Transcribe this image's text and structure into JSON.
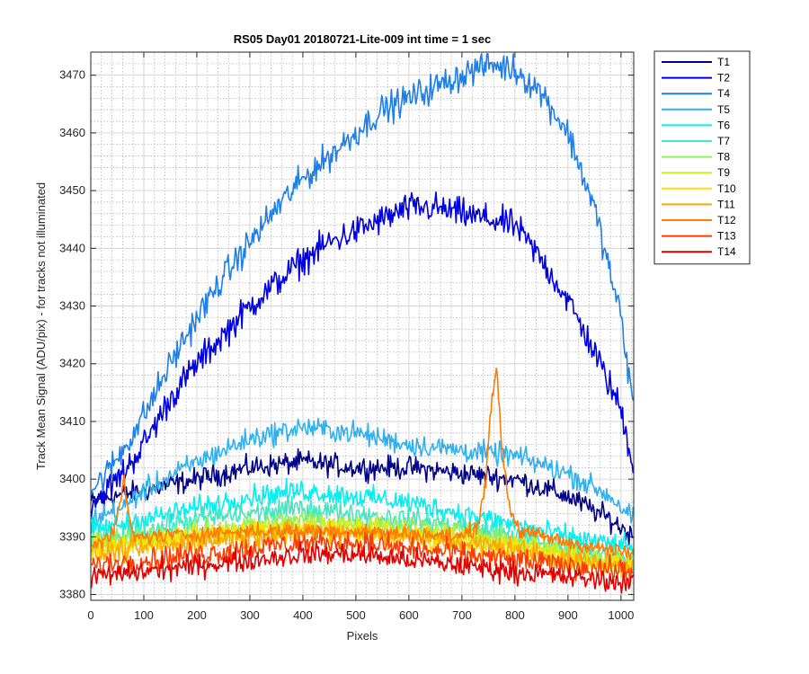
{
  "chart_data": {
    "type": "line",
    "title": "RS05 Day01 20180721-Lite-009 int time = 1 sec",
    "xlabel": "Pixels",
    "ylabel": "Track Mean Signal (ADU/pix) - for tracks not illuminated",
    "xlim": [
      0,
      1024
    ],
    "ylim": [
      3379,
      3474
    ],
    "xticks": [
      0,
      100,
      200,
      300,
      400,
      500,
      600,
      700,
      800,
      900,
      1000
    ],
    "yticks": [
      3380,
      3390,
      3400,
      3410,
      3420,
      3430,
      3440,
      3450,
      3460,
      3470
    ],
    "grid": true,
    "minor_grid": true,
    "legend_position": "outside-top-right",
    "series": [
      {
        "name": "T1",
        "color": "#00008B",
        "x": [
          0,
          40,
          100,
          200,
          300,
          400,
          500,
          600,
          700,
          800,
          900,
          980,
          1024
        ],
        "y": [
          3396,
          3397,
          3398,
          3400,
          3402,
          3403,
          3402,
          3402,
          3401,
          3400,
          3397,
          3393,
          3390
        ],
        "noise": 1.2
      },
      {
        "name": "T2",
        "color": "#0000E0",
        "x": [
          0,
          30,
          60,
          100,
          150,
          200,
          250,
          300,
          350,
          400,
          450,
          500,
          550,
          600,
          650,
          700,
          750,
          800,
          850,
          900,
          950,
          1000,
          1024
        ],
        "y": [
          3396,
          3398,
          3401,
          3406,
          3414,
          3420,
          3425,
          3430,
          3434,
          3438,
          3441,
          3443,
          3445,
          3447,
          3447,
          3446,
          3445,
          3444,
          3438,
          3431,
          3422,
          3412,
          3402
        ],
        "noise": 1.6
      },
      {
        "name": "T4",
        "color": "#1E7FE8",
        "x": [
          0,
          30,
          60,
          100,
          150,
          200,
          250,
          300,
          350,
          400,
          450,
          500,
          550,
          600,
          650,
          700,
          750,
          800,
          850,
          900,
          950,
          1000,
          1024
        ],
        "y": [
          3398,
          3401,
          3405,
          3411,
          3420,
          3428,
          3435,
          3441,
          3447,
          3452,
          3456,
          3460,
          3464,
          3466,
          3468,
          3470,
          3472,
          3471,
          3467,
          3460,
          3447,
          3428,
          3412
        ],
        "noise": 1.6
      },
      {
        "name": "T5",
        "color": "#2FB0F0",
        "x": [
          0,
          60,
          100,
          200,
          300,
          400,
          500,
          600,
          700,
          800,
          900,
          980,
          1024
        ],
        "y": [
          3393,
          3395,
          3398,
          3403,
          3407,
          3409,
          3408,
          3406,
          3405,
          3404,
          3401,
          3397,
          3393
        ],
        "noise": 1.2
      },
      {
        "name": "T6",
        "color": "#00F0F0",
        "x": [
          0,
          100,
          200,
          300,
          400,
          500,
          600,
          700,
          800,
          900,
          1024
        ],
        "y": [
          3391,
          3393,
          3395,
          3397,
          3398,
          3397,
          3396,
          3394,
          3392,
          3390,
          3388
        ],
        "noise": 1.2
      },
      {
        "name": "T7",
        "color": "#40E8C0",
        "x": [
          0,
          100,
          200,
          300,
          400,
          500,
          600,
          700,
          800,
          900,
          1024
        ],
        "y": [
          3389,
          3391,
          3393,
          3394,
          3395,
          3394,
          3393,
          3392,
          3390,
          3388,
          3386
        ],
        "noise": 1.2
      },
      {
        "name": "T8",
        "color": "#90EE60",
        "x": [
          0,
          100,
          200,
          300,
          400,
          500,
          600,
          700,
          800,
          900,
          1024
        ],
        "y": [
          3389,
          3390,
          3391,
          3392,
          3393,
          3392,
          3392,
          3391,
          3389,
          3387,
          3386
        ],
        "noise": 1.2
      },
      {
        "name": "T9",
        "color": "#D0F020",
        "x": [
          0,
          100,
          200,
          300,
          400,
          500,
          600,
          700,
          800,
          900,
          1024
        ],
        "y": [
          3388,
          3389,
          3390,
          3391,
          3392,
          3392,
          3391,
          3390,
          3389,
          3387,
          3385
        ],
        "noise": 1.2
      },
      {
        "name": "T10",
        "color": "#FFE000",
        "x": [
          0,
          100,
          200,
          300,
          400,
          500,
          600,
          700,
          800,
          900,
          1024
        ],
        "y": [
          3388,
          3389,
          3390,
          3391,
          3391,
          3391,
          3390,
          3389,
          3388,
          3386,
          3385
        ],
        "noise": 1.2
      },
      {
        "name": "T11",
        "color": "#FFA800",
        "x": [
          0,
          100,
          200,
          300,
          400,
          500,
          600,
          700,
          800,
          900,
          1024
        ],
        "y": [
          3387,
          3388,
          3389,
          3390,
          3391,
          3391,
          3390,
          3389,
          3388,
          3386,
          3385
        ],
        "noise": 1.3
      },
      {
        "name": "T12",
        "color": "#FF7A00",
        "x": [
          0,
          40,
          55,
          62,
          70,
          80,
          100,
          300,
          500,
          700,
          730,
          745,
          755,
          765,
          775,
          790,
          810,
          900,
          1024
        ],
        "y": [
          3389,
          3390,
          3395,
          3401,
          3394,
          3390,
          3390,
          3391,
          3391,
          3390,
          3392,
          3400,
          3412,
          3420,
          3406,
          3395,
          3391,
          3389,
          3387
        ],
        "noise": 0.8
      },
      {
        "name": "T13",
        "color": "#FF3C00",
        "x": [
          0,
          100,
          200,
          300,
          400,
          500,
          600,
          700,
          800,
          900,
          1024
        ],
        "y": [
          3385,
          3386,
          3387,
          3388,
          3389,
          3389,
          3388,
          3387,
          3386,
          3385,
          3384
        ],
        "noise": 1.3
      },
      {
        "name": "T14",
        "color": "#E00000",
        "x": [
          0,
          100,
          200,
          300,
          400,
          500,
          600,
          700,
          800,
          900,
          1024
        ],
        "y": [
          3383,
          3384,
          3385,
          3386,
          3387,
          3387,
          3386,
          3385,
          3384,
          3383,
          3382
        ],
        "noise": 1.2
      }
    ]
  }
}
